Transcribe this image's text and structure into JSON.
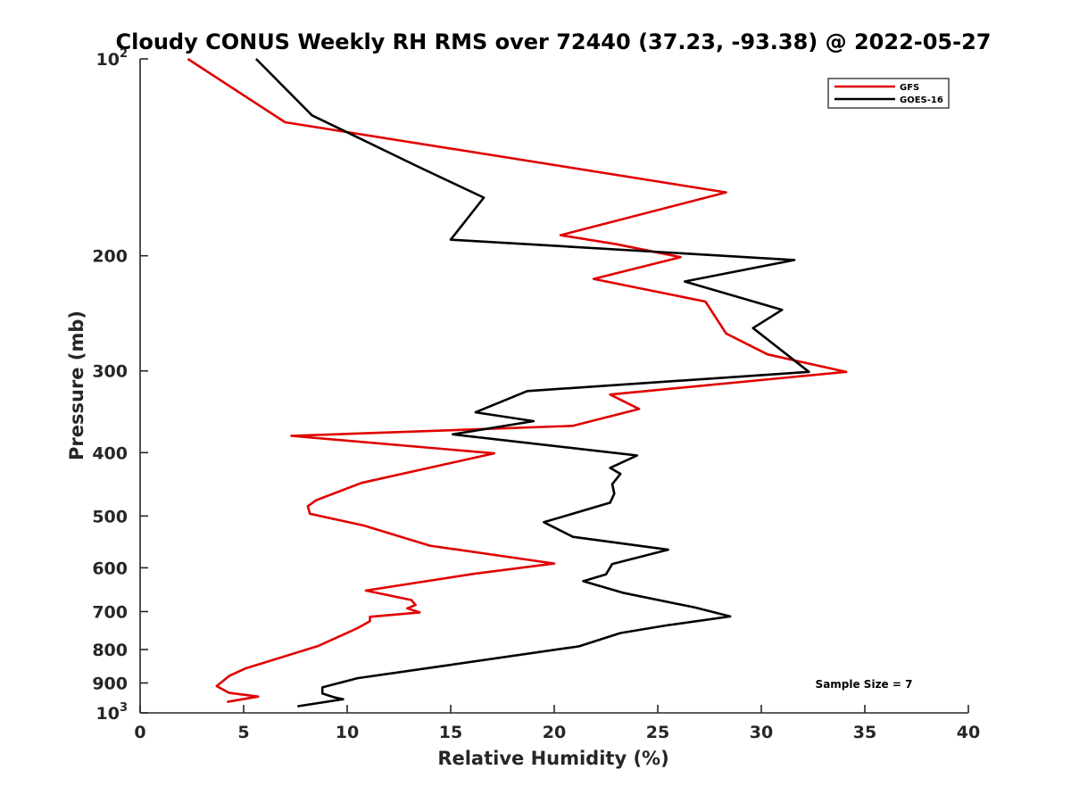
{
  "chart_data": {
    "type": "line",
    "title": "Cloudy CONUS Weekly RH RMS over 72440 (37.23, -93.38) @ 2022-05-27",
    "xlabel": "Relative Humidity (%)",
    "ylabel": "Pressure (mb)",
    "xlim": [
      0,
      40
    ],
    "ylim": [
      100,
      1000
    ],
    "y_scale": "log",
    "y_reversed": true,
    "x_ticks": [
      0,
      5,
      10,
      15,
      20,
      25,
      30,
      35,
      40
    ],
    "y_ticks": [
      {
        "value": 100,
        "label": "10",
        "sup": "2"
      },
      {
        "value": 200,
        "label": "200",
        "sup": ""
      },
      {
        "value": 300,
        "label": "300",
        "sup": ""
      },
      {
        "value": 400,
        "label": "400",
        "sup": ""
      },
      {
        "value": 500,
        "label": "500",
        "sup": ""
      },
      {
        "value": 600,
        "label": "600",
        "sup": ""
      },
      {
        "value": 700,
        "label": "700",
        "sup": ""
      },
      {
        "value": 800,
        "label": "800",
        "sup": ""
      },
      {
        "value": 900,
        "label": "900",
        "sup": ""
      },
      {
        "value": 1000,
        "label": "10",
        "sup": "3"
      }
    ],
    "grid": false,
    "legend_position": "top-right",
    "series": [
      {
        "name": "GFS",
        "color": "#e00000",
        "points": [
          [
            2.3,
            100
          ],
          [
            7.0,
            125
          ],
          [
            28.3,
            160
          ],
          [
            20.3,
            186
          ],
          [
            23.0,
            192
          ],
          [
            26.1,
            201
          ],
          [
            21.9,
            217
          ],
          [
            27.3,
            235
          ],
          [
            28.3,
            263
          ],
          [
            30.3,
            283
          ],
          [
            34.1,
            301
          ],
          [
            22.7,
            326
          ],
          [
            24.1,
            343
          ],
          [
            20.9,
            364
          ],
          [
            7.3,
            377
          ],
          [
            17.1,
            401
          ],
          [
            10.7,
            445
          ],
          [
            8.5,
            473
          ],
          [
            8.1,
            483
          ],
          [
            8.2,
            496
          ],
          [
            10.8,
            517
          ],
          [
            14.0,
            555
          ],
          [
            20.0,
            591
          ],
          [
            16.1,
            613
          ],
          [
            10.9,
            650
          ],
          [
            13.1,
            672
          ],
          [
            13.3,
            684
          ],
          [
            12.9,
            692
          ],
          [
            13.5,
            702
          ],
          [
            11.1,
            713
          ],
          [
            11.1,
            724
          ],
          [
            10.5,
            742
          ],
          [
            8.6,
            790
          ],
          [
            5.1,
            855
          ],
          [
            4.3,
            878
          ],
          [
            3.7,
            910
          ],
          [
            4.3,
            932
          ],
          [
            5.7,
            944
          ],
          [
            4.2,
            962
          ]
        ]
      },
      {
        "name": "GOES-16",
        "color": "#000000",
        "points": [
          [
            5.6,
            100
          ],
          [
            8.3,
            122
          ],
          [
            13.4,
            146
          ],
          [
            16.6,
            163
          ],
          [
            15.0,
            189
          ],
          [
            31.6,
            203
          ],
          [
            26.3,
            219
          ],
          [
            31.0,
            242
          ],
          [
            29.6,
            258
          ],
          [
            32.3,
            301
          ],
          [
            18.7,
            322
          ],
          [
            16.2,
            347
          ],
          [
            19.0,
            358
          ],
          [
            15.1,
            375
          ],
          [
            24.0,
            404
          ],
          [
            22.7,
            422
          ],
          [
            23.2,
            431
          ],
          [
            22.8,
            447
          ],
          [
            22.9,
            462
          ],
          [
            22.7,
            477
          ],
          [
            19.5,
            511
          ],
          [
            20.9,
            538
          ],
          [
            25.5,
            563
          ],
          [
            22.8,
            592
          ],
          [
            22.5,
            614
          ],
          [
            21.4,
            629
          ],
          [
            23.3,
            655
          ],
          [
            26.8,
            690
          ],
          [
            28.5,
            712
          ],
          [
            25.4,
            735
          ],
          [
            23.2,
            755
          ],
          [
            21.2,
            791
          ],
          [
            14.8,
            846
          ],
          [
            10.5,
            885
          ],
          [
            8.8,
            914
          ],
          [
            8.8,
            934
          ],
          [
            9.4,
            947
          ],
          [
            9.8,
            953
          ],
          [
            7.6,
            977
          ]
        ]
      }
    ],
    "annotation": "Sample Size = 7"
  }
}
